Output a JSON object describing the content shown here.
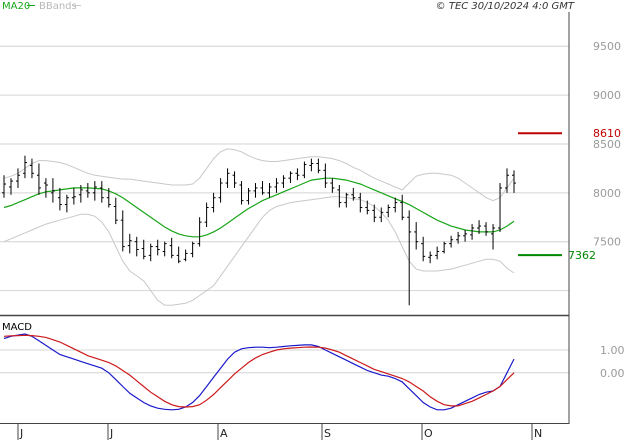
{
  "legend": {
    "ma_label": "MA20",
    "bb_label": "BBands",
    "ma_color": "#19a519",
    "bb_color": "#c8c8c8"
  },
  "copyright": "© TEC 30/10/2024 4:0 GMT",
  "macd_label": "MACD",
  "months": [
    "J",
    "J",
    "A",
    "S",
    "O",
    "N"
  ],
  "chart_data": [
    {
      "type": "line",
      "title": "",
      "y_ticks": [
        "9500",
        "9000",
        "8500",
        "8000",
        "7500"
      ],
      "ylim": [
        6750,
        9850
      ],
      "levels": [
        {
          "value": 8610,
          "label": "8610",
          "color": "#c00000"
        },
        {
          "value": 7362,
          "label": "7362",
          "color": "#008800"
        }
      ],
      "price": [
        [
          8000,
          8180,
          7950,
          8090
        ],
        [
          8060,
          8150,
          7980,
          8120
        ],
        [
          8120,
          8250,
          8050,
          8180
        ],
        [
          8200,
          8380,
          8150,
          8310
        ],
        [
          8280,
          8350,
          8150,
          8200
        ],
        [
          8180,
          8300,
          7980,
          8050
        ],
        [
          8100,
          8150,
          7950,
          8080
        ],
        [
          8000,
          8150,
          7900,
          8020
        ],
        [
          7950,
          8050,
          7820,
          7880
        ],
        [
          7880,
          7980,
          7800,
          7950
        ],
        [
          7950,
          8050,
          7880,
          7960
        ],
        [
          7980,
          8080,
          7900,
          8030
        ],
        [
          8020,
          8100,
          7950,
          8000
        ],
        [
          8000,
          8120,
          7920,
          8060
        ],
        [
          8050,
          8120,
          7900,
          7950
        ],
        [
          7950,
          8050,
          7850,
          7880
        ],
        [
          7860,
          7950,
          7680,
          7720
        ],
        [
          7720,
          7820,
          7400,
          7450
        ],
        [
          7460,
          7580,
          7380,
          7510
        ],
        [
          7500,
          7550,
          7350,
          7420
        ],
        [
          7430,
          7520,
          7320,
          7350
        ],
        [
          7360,
          7480,
          7300,
          7450
        ],
        [
          7450,
          7520,
          7360,
          7420
        ],
        [
          7400,
          7500,
          7350,
          7480
        ],
        [
          7460,
          7540,
          7330,
          7360
        ],
        [
          7360,
          7450,
          7280,
          7300
        ],
        [
          7320,
          7420,
          7300,
          7380
        ],
        [
          7380,
          7500,
          7340,
          7480
        ],
        [
          7480,
          7750,
          7450,
          7700
        ],
        [
          7700,
          7900,
          7650,
          7850
        ],
        [
          7850,
          8000,
          7800,
          7950
        ],
        [
          7950,
          8150,
          7900,
          8100
        ],
        [
          8100,
          8250,
          8050,
          8200
        ],
        [
          8180,
          8220,
          8050,
          8100
        ],
        [
          8080,
          8120,
          7880,
          7920
        ],
        [
          7920,
          8050,
          7880,
          8020
        ],
        [
          8020,
          8100,
          7950,
          8050
        ],
        [
          8050,
          8120,
          7980,
          8000
        ],
        [
          8000,
          8100,
          7950,
          8060
        ],
        [
          8060,
          8150,
          8000,
          8100
        ],
        [
          8100,
          8180,
          8050,
          8150
        ],
        [
          8150,
          8220,
          8100,
          8200
        ],
        [
          8200,
          8250,
          8130,
          8180
        ],
        [
          8180,
          8320,
          8150,
          8290
        ],
        [
          8280,
          8350,
          8220,
          8300
        ],
        [
          8300,
          8350,
          8200,
          8230
        ],
        [
          8230,
          8300,
          8050,
          8100
        ],
        [
          8100,
          8150,
          8000,
          8050
        ],
        [
          8030,
          8080,
          7850,
          7900
        ],
        [
          7900,
          8000,
          7850,
          7980
        ],
        [
          7980,
          8050,
          7920,
          7950
        ],
        [
          7950,
          8000,
          7800,
          7850
        ],
        [
          7850,
          7920,
          7780,
          7820
        ],
        [
          7820,
          7880,
          7700,
          7750
        ],
        [
          7750,
          7850,
          7700,
          7800
        ],
        [
          7800,
          7880,
          7750,
          7850
        ],
        [
          7850,
          7950,
          7800,
          7900
        ],
        [
          7900,
          7980,
          7720,
          7750
        ],
        [
          7750,
          7820,
          6850,
          7600
        ],
        [
          7600,
          7700,
          7420,
          7500
        ],
        [
          7480,
          7550,
          7300,
          7350
        ],
        [
          7340,
          7400,
          7280,
          7360
        ],
        [
          7360,
          7450,
          7320,
          7400
        ],
        [
          7400,
          7500,
          7380,
          7480
        ],
        [
          7480,
          7560,
          7440,
          7520
        ],
        [
          7520,
          7600,
          7480,
          7560
        ],
        [
          7560,
          7620,
          7500,
          7580
        ],
        [
          7570,
          7680,
          7520,
          7640
        ],
        [
          7640,
          7720,
          7580,
          7660
        ],
        [
          7660,
          7700,
          7560,
          7600
        ],
        [
          7580,
          7680,
          7420,
          7640
        ],
        [
          7640,
          8100,
          7600,
          8050
        ],
        [
          8050,
          8250,
          8000,
          8180
        ],
        [
          8180,
          8230,
          8000,
          8100
        ]
      ],
      "ma20": [
        7850,
        7870,
        7900,
        7930,
        7960,
        7990,
        8010,
        8020,
        8030,
        8040,
        8050,
        8050,
        8050,
        8045,
        8040,
        8020,
        7990,
        7950,
        7900,
        7850,
        7800,
        7750,
        7700,
        7650,
        7610,
        7580,
        7560,
        7550,
        7550,
        7570,
        7600,
        7640,
        7690,
        7740,
        7790,
        7840,
        7880,
        7920,
        7950,
        7980,
        8010,
        8040,
        8070,
        8100,
        8130,
        8140,
        8150,
        8150,
        8140,
        8130,
        8110,
        8090,
        8060,
        8030,
        8000,
        7970,
        7940,
        7910,
        7880,
        7840,
        7800,
        7760,
        7720,
        7690,
        7660,
        7640,
        7620,
        7610,
        7600,
        7600,
        7600,
        7620,
        7660,
        7710
      ],
      "bb_upper": [
        8150,
        8170,
        8200,
        8250,
        8300,
        8330,
        8330,
        8320,
        8310,
        8290,
        8260,
        8230,
        8200,
        8180,
        8170,
        8160,
        8150,
        8140,
        8140,
        8130,
        8120,
        8110,
        8100,
        8090,
        8080,
        8080,
        8080,
        8090,
        8150,
        8250,
        8350,
        8420,
        8450,
        8440,
        8420,
        8380,
        8350,
        8330,
        8320,
        8320,
        8330,
        8340,
        8350,
        8360,
        8370,
        8370,
        8360,
        8350,
        8330,
        8300,
        8260,
        8230,
        8190,
        8150,
        8120,
        8090,
        8060,
        8030,
        8100,
        8170,
        8190,
        8200,
        8200,
        8190,
        8180,
        8150,
        8100,
        8050,
        8000,
        7950,
        7920,
        7950,
        8050,
        8150
      ],
      "bb_lower": [
        7500,
        7530,
        7560,
        7590,
        7620,
        7650,
        7680,
        7700,
        7720,
        7740,
        7760,
        7780,
        7780,
        7760,
        7700,
        7600,
        7450,
        7300,
        7200,
        7150,
        7100,
        7000,
        6900,
        6850,
        6850,
        6860,
        6870,
        6900,
        6950,
        7000,
        7050,
        7150,
        7250,
        7350,
        7450,
        7550,
        7650,
        7750,
        7820,
        7860,
        7880,
        7900,
        7910,
        7920,
        7930,
        7940,
        7950,
        7960,
        7960,
        7950,
        7940,
        7930,
        7900,
        7860,
        7800,
        7720,
        7600,
        7450,
        7300,
        7220,
        7200,
        7200,
        7200,
        7210,
        7220,
        7240,
        7260,
        7280,
        7300,
        7320,
        7320,
        7300,
        7230,
        7180
      ]
    },
    {
      "type": "line",
      "title": "MACD",
      "y_ticks": [
        "1.00",
        "0.00"
      ],
      "ylim": [
        -2.2,
        2.4
      ],
      "series": [
        {
          "color": "#1a1acc",
          "values": [
            1.5,
            1.6,
            1.65,
            1.7,
            1.6,
            1.4,
            1.2,
            1.0,
            0.8,
            0.7,
            0.6,
            0.5,
            0.4,
            0.3,
            0.2,
            0.0,
            -0.3,
            -0.6,
            -0.9,
            -1.1,
            -1.3,
            -1.45,
            -1.55,
            -1.6,
            -1.62,
            -1.6,
            -1.5,
            -1.3,
            -1.0,
            -0.6,
            -0.2,
            0.2,
            0.6,
            0.9,
            1.05,
            1.1,
            1.12,
            1.12,
            1.1,
            1.12,
            1.15,
            1.18,
            1.2,
            1.22,
            1.22,
            1.15,
            1.0,
            0.85,
            0.7,
            0.55,
            0.4,
            0.25,
            0.1,
            0.0,
            -0.1,
            -0.15,
            -0.25,
            -0.4,
            -0.7,
            -1.0,
            -1.3,
            -1.5,
            -1.62,
            -1.62,
            -1.55,
            -1.4,
            -1.25,
            -1.1,
            -0.95,
            -0.85,
            -0.8,
            -0.6,
            0.0,
            0.6
          ]
        },
        {
          "color": "#cc1a1a",
          "values": [
            1.6,
            1.62,
            1.63,
            1.64,
            1.63,
            1.6,
            1.55,
            1.45,
            1.35,
            1.2,
            1.05,
            0.9,
            0.75,
            0.65,
            0.55,
            0.45,
            0.3,
            0.1,
            -0.1,
            -0.35,
            -0.6,
            -0.85,
            -1.05,
            -1.25,
            -1.4,
            -1.48,
            -1.5,
            -1.48,
            -1.4,
            -1.2,
            -0.95,
            -0.65,
            -0.35,
            -0.05,
            0.2,
            0.45,
            0.65,
            0.8,
            0.9,
            1.0,
            1.05,
            1.08,
            1.1,
            1.12,
            1.13,
            1.12,
            1.08,
            1.0,
            0.9,
            0.75,
            0.6,
            0.45,
            0.3,
            0.15,
            0.05,
            -0.05,
            -0.15,
            -0.25,
            -0.4,
            -0.6,
            -0.8,
            -1.05,
            -1.25,
            -1.4,
            -1.45,
            -1.45,
            -1.35,
            -1.25,
            -1.1,
            -0.95,
            -0.8,
            -0.6,
            -0.3,
            0.0
          ]
        }
      ]
    }
  ]
}
